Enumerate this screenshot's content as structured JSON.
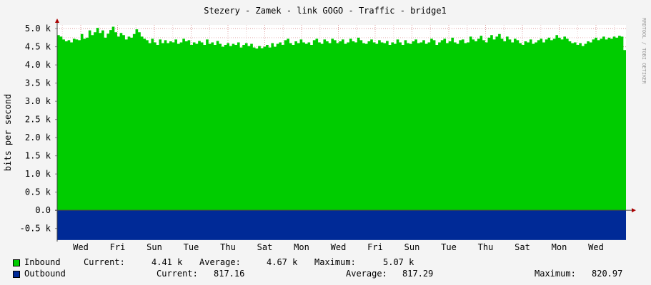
{
  "chart_data": {
    "type": "area",
    "title": "Stezery - Zamek - link GOGO  - Traffic - bridge1",
    "ylabel": "bits per second",
    "watermark": "RRDTOOL / TOBI OETIKER",
    "ylim": [
      -0.8,
      5.1
    ],
    "ytick_values": [
      -0.5,
      0.0,
      0.5,
      1.0,
      1.5,
      2.0,
      2.5,
      3.0,
      3.5,
      4.0,
      4.5,
      5.0
    ],
    "ytick_labels": [
      "-0.5 k",
      "0.0",
      "0.5 k",
      "1.0 k",
      "1.5 k",
      "2.0 k",
      "2.5 k",
      "3.0 k",
      "3.5 k",
      "4.0 k",
      "4.5 k",
      "5.0 k"
    ],
    "x_day_labels": [
      "Wed",
      "Fri",
      "Sun",
      "Tue",
      "Thu",
      "Sat",
      "Mon",
      "Wed",
      "Fri",
      "Sun",
      "Tue",
      "Thu",
      "Sat",
      "Mon",
      "Wed"
    ],
    "grid": true,
    "series": [
      {
        "name": "Inbound",
        "color": "#00cc00",
        "unit": "k",
        "values": [
          4.82,
          4.78,
          4.7,
          4.65,
          4.68,
          4.62,
          4.72,
          4.7,
          4.68,
          4.85,
          4.72,
          4.75,
          4.95,
          4.82,
          4.9,
          5.02,
          4.88,
          4.95,
          4.75,
          4.86,
          4.96,
          5.05,
          4.9,
          4.78,
          4.88,
          4.82,
          4.7,
          4.78,
          4.75,
          4.85,
          4.98,
          4.9,
          4.78,
          4.72,
          4.68,
          4.6,
          4.72,
          4.62,
          4.55,
          4.7,
          4.6,
          4.68,
          4.6,
          4.65,
          4.62,
          4.7,
          4.58,
          4.62,
          4.72,
          4.65,
          4.68,
          4.55,
          4.62,
          4.58,
          4.66,
          4.62,
          4.55,
          4.7,
          4.58,
          4.62,
          4.55,
          4.66,
          4.58,
          4.5,
          4.55,
          4.6,
          4.52,
          4.58,
          4.55,
          4.62,
          4.48,
          4.55,
          4.6,
          4.52,
          4.58,
          4.48,
          4.45,
          4.52,
          4.46,
          4.5,
          4.55,
          4.48,
          4.6,
          4.5,
          4.58,
          4.62,
          4.55,
          4.68,
          4.72,
          4.6,
          4.55,
          4.65,
          4.6,
          4.7,
          4.62,
          4.58,
          4.62,
          4.55,
          4.68,
          4.72,
          4.62,
          4.58,
          4.7,
          4.65,
          4.6,
          4.72,
          4.68,
          4.6,
          4.65,
          4.7,
          4.58,
          4.62,
          4.72,
          4.65,
          4.62,
          4.75,
          4.68,
          4.6,
          4.58,
          4.65,
          4.7,
          4.62,
          4.58,
          4.68,
          4.62,
          4.6,
          4.66,
          4.55,
          4.62,
          4.58,
          4.7,
          4.62,
          4.55,
          4.68,
          4.6,
          4.58,
          4.65,
          4.7,
          4.6,
          4.62,
          4.68,
          4.58,
          4.62,
          4.72,
          4.68,
          4.55,
          4.62,
          4.68,
          4.72,
          4.6,
          4.65,
          4.75,
          4.62,
          4.58,
          4.68,
          4.7,
          4.6,
          4.62,
          4.78,
          4.7,
          4.65,
          4.72,
          4.8,
          4.68,
          4.62,
          4.75,
          4.82,
          4.7,
          4.78,
          4.85,
          4.72,
          4.65,
          4.78,
          4.7,
          4.62,
          4.72,
          4.68,
          4.6,
          4.55,
          4.65,
          4.62,
          4.7,
          4.58,
          4.62,
          4.68,
          4.72,
          4.62,
          4.7,
          4.75,
          4.68,
          4.72,
          4.82,
          4.75,
          4.7,
          4.78,
          4.72,
          4.65,
          4.6,
          4.62,
          4.55,
          4.6,
          4.52,
          4.58,
          4.65,
          4.62,
          4.7,
          4.75,
          4.68,
          4.72,
          4.78,
          4.7,
          4.75,
          4.72,
          4.78,
          4.75,
          4.8,
          4.78,
          4.41
        ],
        "legend_current": "4.41 k",
        "legend_average": "4.67 k",
        "legend_maximum": "5.07 k"
      },
      {
        "name": "Outbound",
        "color": "#002a97",
        "value": -817.16,
        "legend_current": "817.16",
        "legend_average": "817.29",
        "legend_maximum": "820.97"
      }
    ]
  },
  "legend": {
    "current_label": "Current:",
    "average_label": "Average:",
    "maximum_label": "Maximum:"
  }
}
